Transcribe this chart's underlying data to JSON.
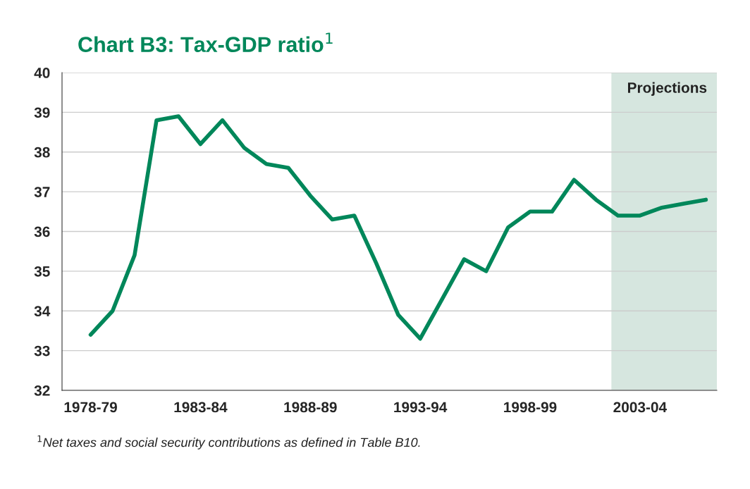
{
  "chart_data": {
    "type": "line",
    "title": "Chart B3: Tax-GDP ratio$^{1}$",
    "categories": [
      "1978-79",
      null,
      null,
      null,
      null,
      "1983-84",
      null,
      null,
      null,
      null,
      "1988-89",
      null,
      null,
      null,
      null,
      "1993-94",
      null,
      null,
      null,
      null,
      "1998-99",
      null,
      null,
      null,
      null,
      "2003-04",
      null,
      null,
      null
    ],
    "series": [
      {
        "color": "#00875a",
        "values": [
          33.4,
          34.0,
          35.4,
          38.8,
          38.9,
          38.2,
          38.8,
          38.1,
          37.7,
          37.6,
          36.9,
          36.3,
          36.4,
          35.2,
          33.9,
          33.3,
          34.3,
          35.3,
          35.0,
          36.1,
          36.5,
          36.5,
          37.3,
          36.8,
          36.4,
          36.4,
          36.6,
          36.7,
          36.8
        ]
      }
    ],
    "ylim": [
      32,
      40
    ],
    "yticks": [
      32,
      33,
      34,
      35,
      36,
      37,
      38,
      39,
      40
    ],
    "grid": "y",
    "marker": "none",
    "line_style": "solid",
    "annotations": [
      "Projections",
      "$^{1}$Net taxes and social security contributions as defined in Table B10."
    ]
  }
}
